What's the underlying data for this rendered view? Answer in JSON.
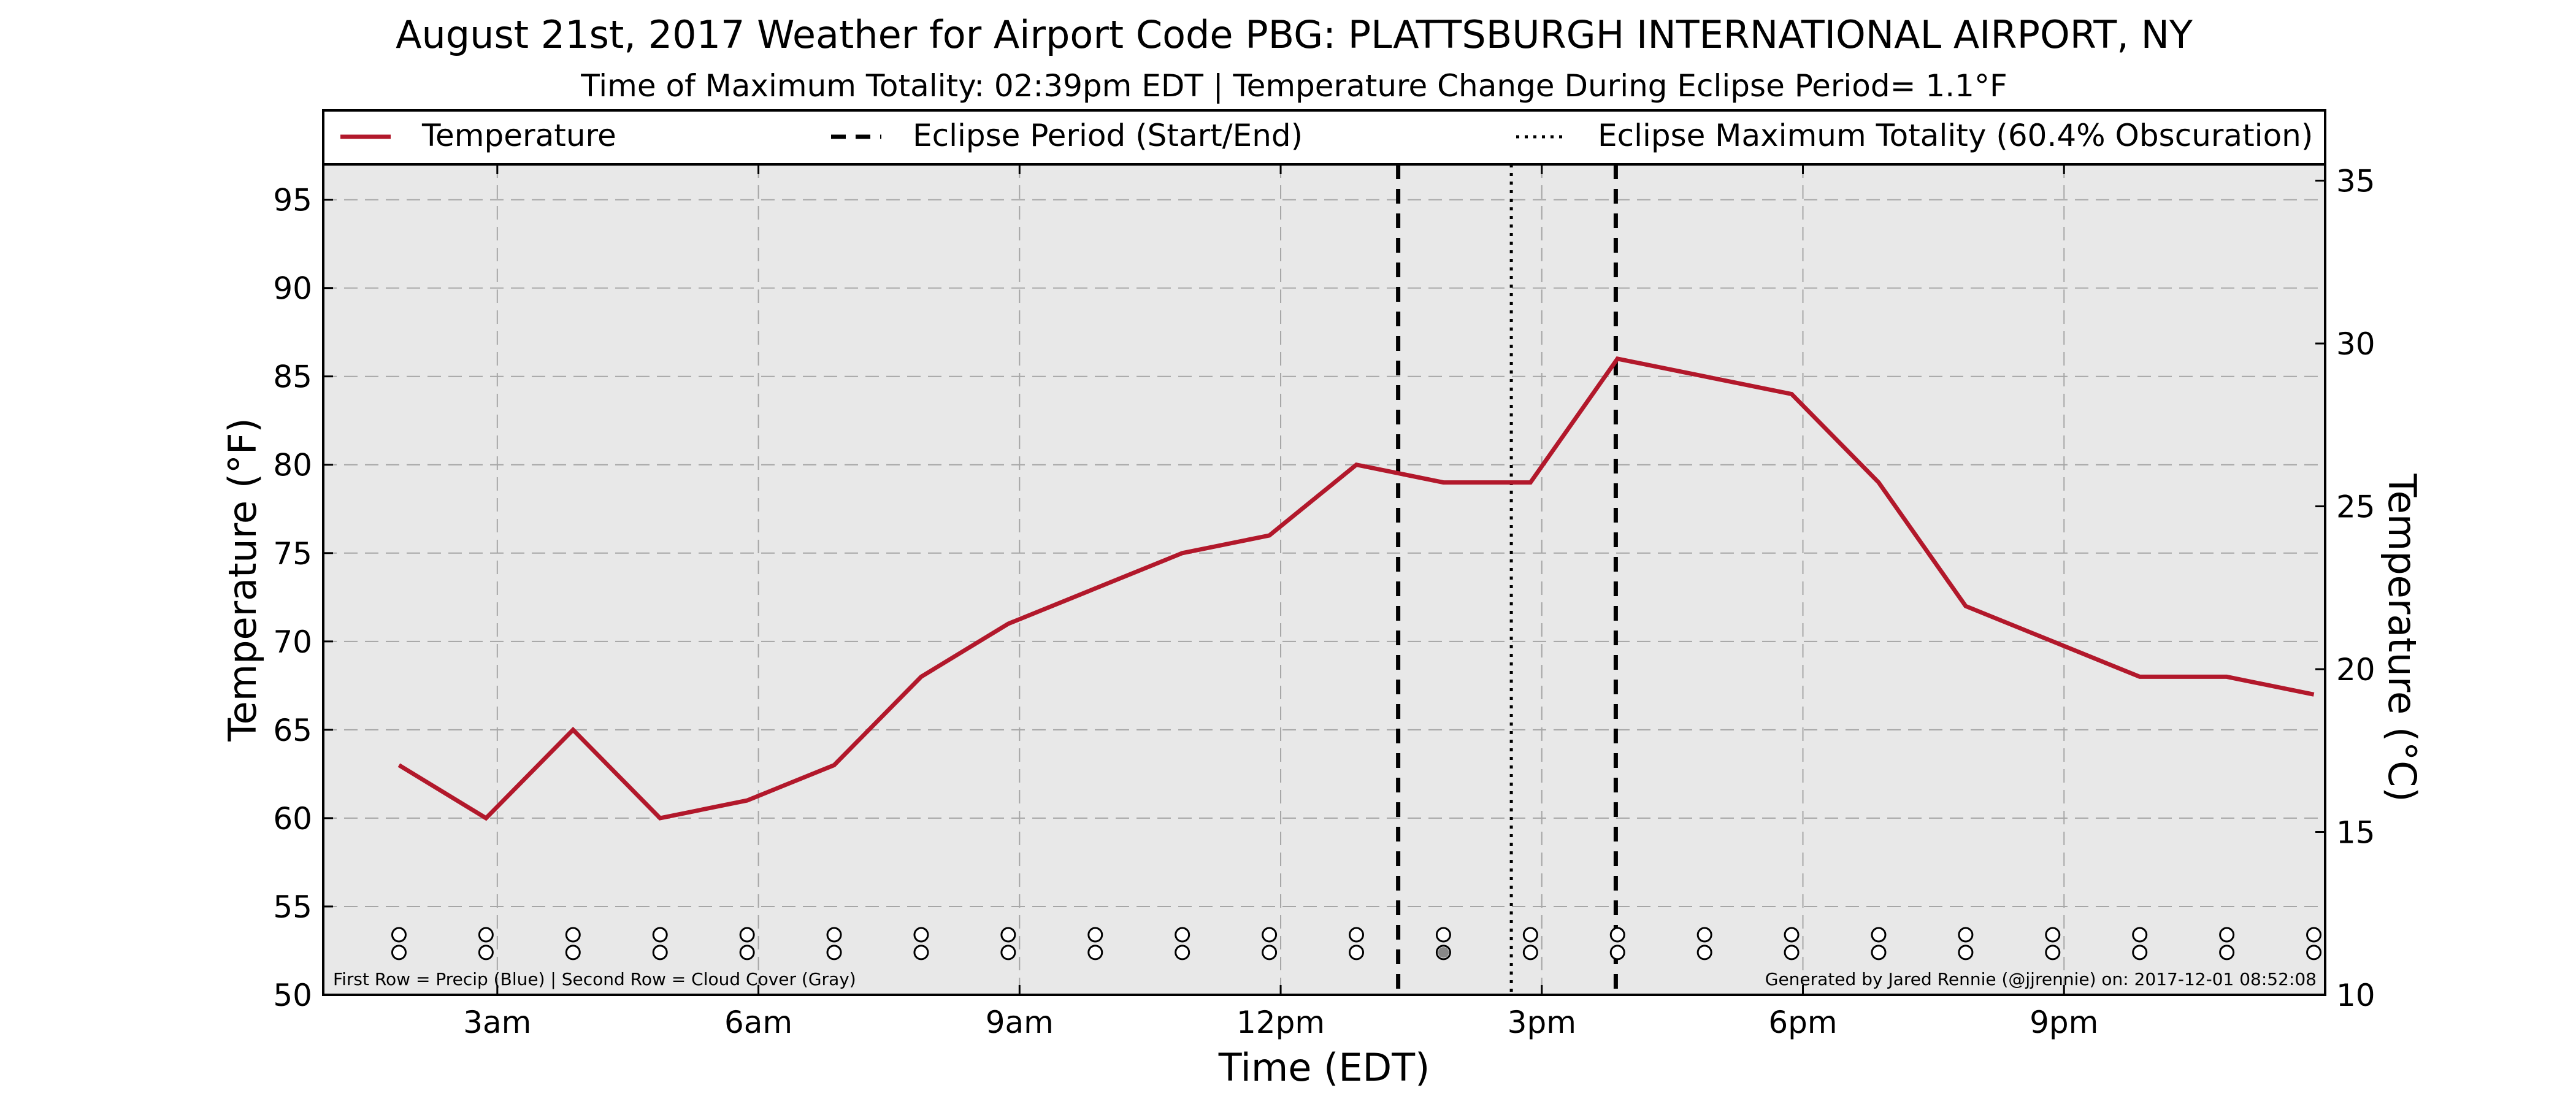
{
  "chart_data": {
    "type": "line",
    "title": "August 21st, 2017 Weather for Airport Code PBG: PLATTSBURGH INTERNATIONAL AIRPORT, NY",
    "subtitle": "Time of Maximum Totality: 02:39pm EDT | Temperature Change During Eclipse Period= 1.1°F",
    "xlabel": "Time (EDT)",
    "ylabel": "Temperature (°F)",
    "ylabel_right": "Temperature (°C)",
    "x_unit": "hours after midnight EDT",
    "xlim": [
      1.0,
      24.0
    ],
    "ylim": [
      50,
      97
    ],
    "ylim_right": [
      10,
      35.5
    ],
    "x_ticks": [
      {
        "value": 3,
        "label": "3am"
      },
      {
        "value": 6,
        "label": "6am"
      },
      {
        "value": 9,
        "label": "9am"
      },
      {
        "value": 12,
        "label": "12pm"
      },
      {
        "value": 15,
        "label": "3pm"
      },
      {
        "value": 18,
        "label": "6pm"
      },
      {
        "value": 21,
        "label": "9pm"
      }
    ],
    "y_ticks": [
      50,
      55,
      60,
      65,
      70,
      75,
      80,
      85,
      90,
      95
    ],
    "y_ticks_right": [
      10,
      15,
      20,
      25,
      30,
      35
    ],
    "grid": true,
    "legend_position": "top",
    "series": [
      {
        "name": "Temperature",
        "color": "#b2182b",
        "x": [
          1.87,
          2.87,
          3.87,
          4.87,
          5.87,
          6.87,
          7.87,
          8.87,
          9.87,
          10.87,
          11.87,
          12.87,
          13.87,
          14.87,
          15.87,
          16.87,
          17.87,
          18.87,
          19.87,
          20.87,
          21.87,
          22.87,
          23.87
        ],
        "y": [
          63,
          60,
          65,
          60,
          61,
          63,
          68,
          71,
          73,
          75,
          76,
          80,
          79,
          79,
          86,
          85,
          84,
          79,
          72,
          70,
          68,
          68,
          67
        ]
      }
    ],
    "eclipse_period": {
      "label": "Eclipse Period (Start/End)",
      "start": 13.35,
      "end": 15.85
    },
    "max_totality": {
      "label": "Eclipse Maximum Totality (60.4% Obscuration)",
      "value": 14.65
    },
    "observation_markers": {
      "x": [
        1.87,
        2.87,
        3.87,
        4.87,
        5.87,
        6.87,
        7.87,
        8.87,
        9.87,
        10.87,
        11.87,
        12.87,
        13.87,
        14.87,
        15.87,
        16.87,
        17.87,
        18.87,
        19.87,
        20.87,
        21.87,
        22.87,
        23.87
      ],
      "precip": [
        0,
        0,
        0,
        0,
        0,
        0,
        0,
        0,
        0,
        0,
        0,
        0,
        0,
        0,
        0,
        0,
        0,
        0,
        0,
        0,
        0,
        0,
        0
      ],
      "cloud_cover": [
        0,
        0,
        0,
        0,
        0,
        0,
        0,
        0,
        0,
        0,
        0,
        0,
        0.5,
        0,
        0,
        0,
        0,
        0,
        0,
        0,
        0,
        0,
        0
      ]
    },
    "note_left": "First Row = Precip (Blue) | Second Row = Cloud Cover (Gray)",
    "note_right": "Generated by Jared Rennie (@jjrennie) on: 2017-12-01 08:52:08"
  },
  "colors": {
    "plot_background": "#e8e8e8",
    "grid": "#a6a6a6",
    "temperature_line": "#b2182b",
    "cloud_cover_fill": "#888888"
  }
}
